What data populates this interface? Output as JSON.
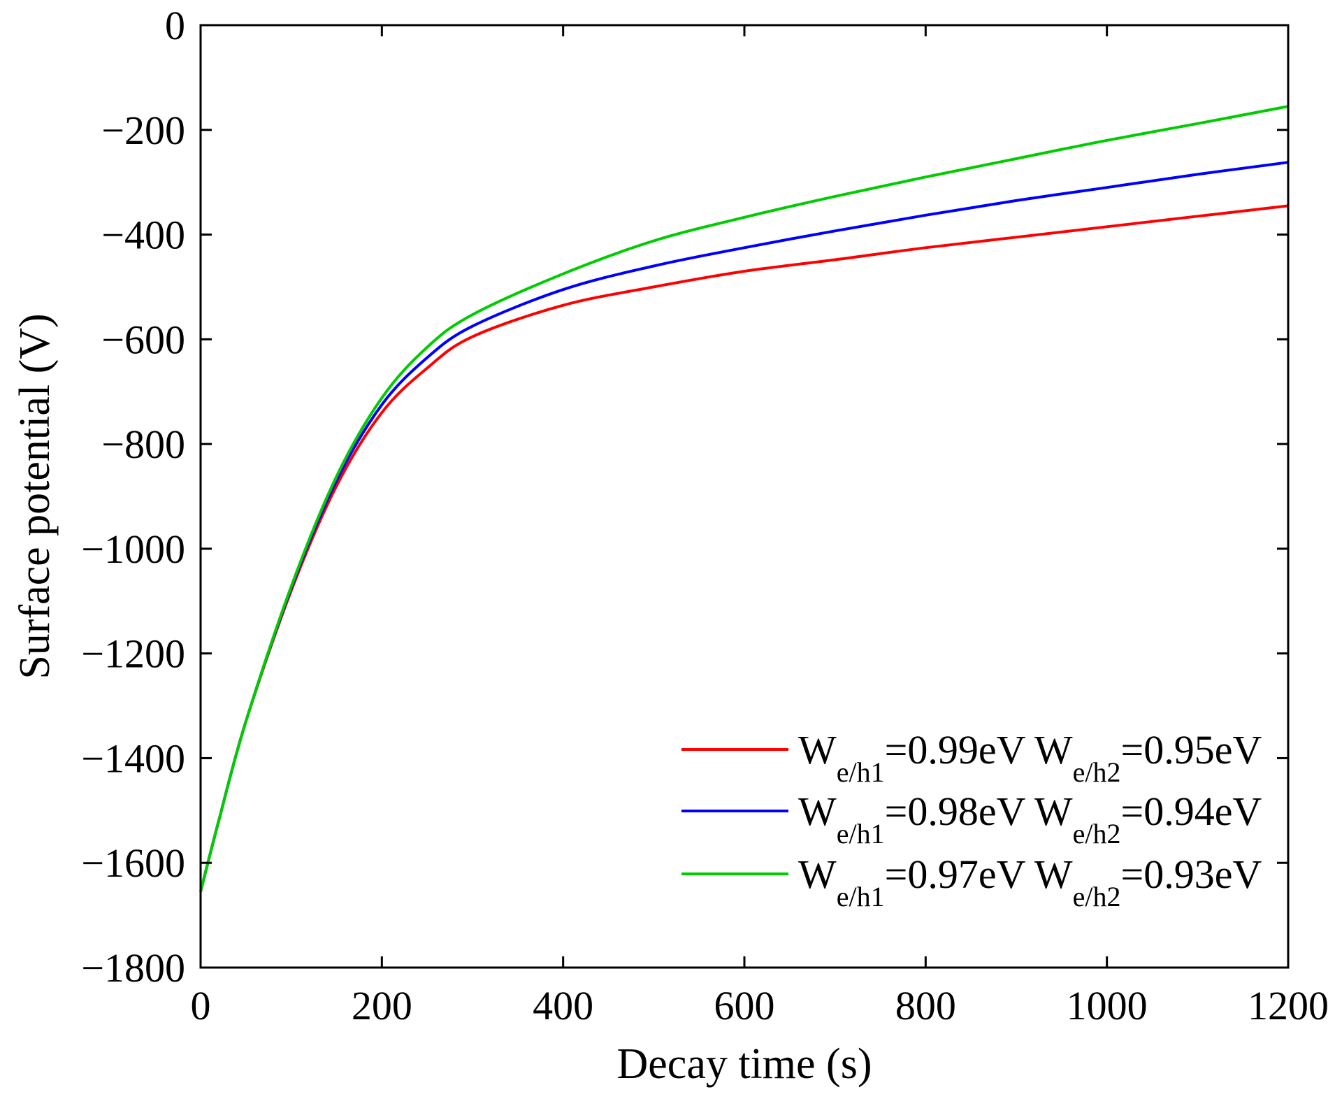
{
  "chart_data": {
    "type": "line",
    "title": "",
    "xlabel": "Decay time (s)",
    "ylabel": "Surface potential (V)",
    "xlim": [
      0,
      1200
    ],
    "ylim": [
      -1800,
      0
    ],
    "xticks": [
      0,
      200,
      400,
      600,
      800,
      1000,
      1200
    ],
    "yticks": [
      0,
      -200,
      -400,
      -600,
      -800,
      -1000,
      -1200,
      -1400,
      -1600,
      -1800
    ],
    "xtick_labels": [
      "0",
      "200",
      "400",
      "600",
      "800",
      "1000",
      "1200"
    ],
    "ytick_labels": [
      "0",
      "−200",
      "−400",
      "−600",
      "−800",
      "−1000",
      "−1200",
      "−1400",
      "−1600",
      "−1800"
    ],
    "grid": false,
    "legend_position": "bottom-right",
    "x": [
      0,
      20,
      50,
      100,
      150,
      200,
      250,
      300,
      400,
      500,
      600,
      700,
      800,
      900,
      1000,
      1100,
      1200
    ],
    "series": [
      {
        "name": "We/h1=0.99eV We/h2=0.95eV",
        "color": "#ff0000",
        "legend": {
          "w1_main": "W",
          "w1_sub": "e/h1",
          "w1_val": "=0.99eV",
          "w2_main": "W",
          "w2_sub": "e/h2",
          "w2_val": "=0.95eV"
        },
        "values": [
          -1655,
          -1520,
          -1330,
          -1080,
          -880,
          -740,
          -655,
          -595,
          -535,
          -500,
          -470,
          -448,
          -425,
          -405,
          -385,
          -365,
          -345
        ]
      },
      {
        "name": "We/h1=0.98eV We/h2=0.94eV",
        "color": "#0000ff",
        "legend": {
          "w1_main": "W",
          "w1_sub": "e/h1",
          "w1_val": "=0.98eV",
          "w2_main": "W",
          "w2_sub": "e/h2",
          "w2_val": "=0.94eV"
        },
        "values": [
          -1655,
          -1520,
          -1330,
          -1075,
          -870,
          -725,
          -635,
          -575,
          -505,
          -460,
          -425,
          -393,
          -363,
          -335,
          -310,
          -285,
          -262
        ]
      },
      {
        "name": "We/h1=0.97eV We/h2=0.93eV",
        "color": "#00cc00",
        "legend": {
          "w1_main": "W",
          "w1_sub": "e/h1",
          "w1_val": "=0.97eV",
          "w2_main": "W",
          "w2_sub": "e/h2",
          "w2_val": "=0.93eV"
        },
        "values": [
          -1655,
          -1520,
          -1330,
          -1072,
          -862,
          -712,
          -615,
          -553,
          -475,
          -412,
          -367,
          -327,
          -290,
          -255,
          -220,
          -188,
          -155
        ]
      }
    ]
  }
}
